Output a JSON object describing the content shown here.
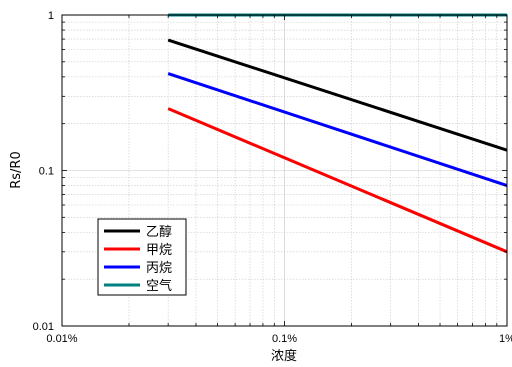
{
  "chart_data": {
    "type": "line",
    "xscale": "log",
    "yscale": "log",
    "xlim": [
      0.01,
      1
    ],
    "ylim": [
      0.01,
      1
    ],
    "xlabel": "浓度",
    "ylabel": "Rs/R0",
    "x_ticks": [
      {
        "value": 0.01,
        "label": "0.01%"
      },
      {
        "value": 0.1,
        "label": "0.1%"
      },
      {
        "value": 1,
        "label": "1%"
      }
    ],
    "y_ticks": [
      {
        "value": 0.01,
        "label": "0.01"
      },
      {
        "value": 0.1,
        "label": "0.1"
      },
      {
        "value": 1,
        "label": "1"
      }
    ],
    "grid": true,
    "legend_position": "bottom-left",
    "series": [
      {
        "name": "乙醇",
        "color": "#000000",
        "points": [
          [
            0.03,
            0.69
          ],
          [
            1,
            0.135
          ]
        ]
      },
      {
        "name": "甲烷",
        "color": "#ff0000",
        "points": [
          [
            0.03,
            0.25
          ],
          [
            1,
            0.03
          ]
        ]
      },
      {
        "name": "丙烷",
        "color": "#0000ff",
        "points": [
          [
            0.03,
            0.42
          ],
          [
            1,
            0.08
          ]
        ]
      },
      {
        "name": "空气",
        "color": "#008080",
        "points": [
          [
            0.03,
            1.0
          ],
          [
            1,
            1.0
          ]
        ]
      }
    ]
  }
}
